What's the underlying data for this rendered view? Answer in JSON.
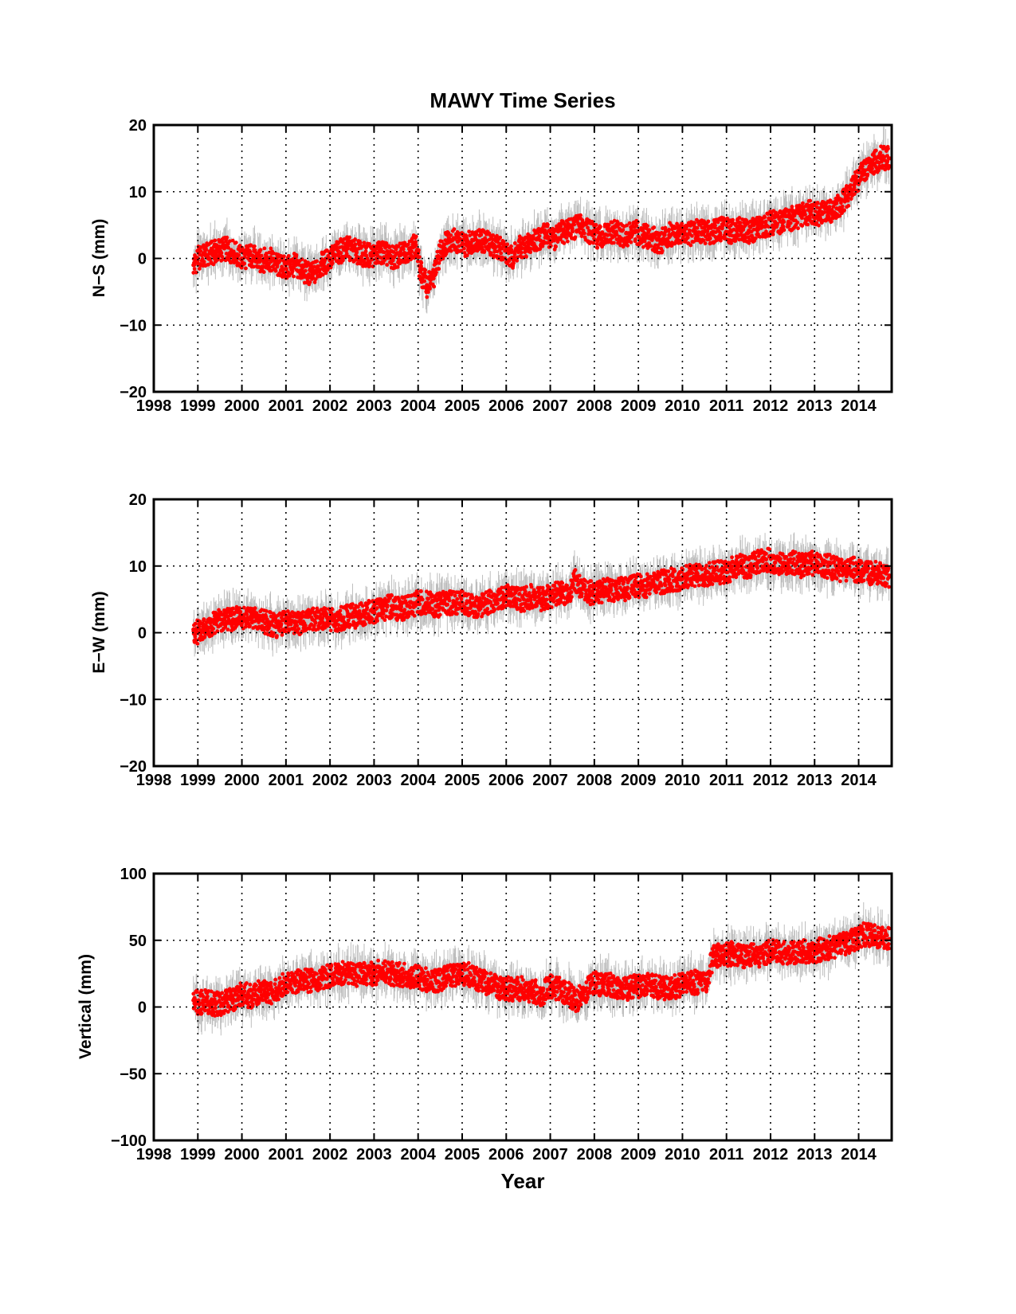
{
  "figure": {
    "title": "MAWY Time Series",
    "xlabel": "Year"
  },
  "colors": {
    "point": "#ff0000",
    "error_bar": "#bdbdbd",
    "axes": "#000000",
    "grid": "#000000"
  },
  "chart_data": [
    {
      "type": "scatter",
      "title": "MAWY Time Series",
      "ylabel": "N−S (mm)",
      "xlabel": "",
      "xlim": [
        1998,
        2014.75
      ],
      "ylim": [
        -20,
        20
      ],
      "xticks": [
        "1998",
        "1999",
        "2000",
        "2001",
        "2002",
        "2003",
        "2004",
        "2005",
        "2006",
        "2007",
        "2008",
        "2009",
        "2010",
        "2011",
        "2012",
        "2013",
        "2014"
      ],
      "yticks": [
        "−20",
        "−10",
        "0",
        "10",
        "20"
      ],
      "yticks_values": [
        -20,
        -10,
        0,
        10,
        20
      ],
      "grid": true,
      "series": [
        {
          "marker": "red dots with grey error bars",
          "x": [
            1998.9,
            1999.0,
            1999.2,
            1999.4,
            1999.6,
            1999.8,
            2000.0,
            2000.2,
            2000.4,
            2000.6,
            2000.8,
            2001.0,
            2001.2,
            2001.4,
            2001.6,
            2001.8,
            2002.0,
            2002.2,
            2002.4,
            2002.6,
            2002.8,
            2003.0,
            2003.2,
            2003.4,
            2003.6,
            2003.8,
            2003.95,
            2004.05,
            2004.2,
            2004.35,
            2004.5,
            2004.7,
            2004.9,
            2005.1,
            2005.3,
            2005.5,
            2005.7,
            2005.9,
            2006.1,
            2006.3,
            2006.5,
            2006.7,
            2006.9,
            2007.1,
            2007.3,
            2007.5,
            2007.7,
            2007.9,
            2008.1,
            2008.3,
            2008.5,
            2008.7,
            2008.9,
            2009.1,
            2009.3,
            2009.5,
            2009.7,
            2009.9,
            2010.1,
            2010.3,
            2010.5,
            2010.7,
            2010.9,
            2011.1,
            2011.3,
            2011.5,
            2011.7,
            2011.9,
            2012.1,
            2012.3,
            2012.5,
            2012.7,
            2012.9,
            2013.1,
            2013.3,
            2013.5,
            2013.7,
            2013.9,
            2014.1,
            2014.3,
            2014.5,
            2014.7
          ],
          "y": [
            -1,
            0,
            0.5,
            1,
            1.5,
            1,
            0,
            0.5,
            -0.5,
            0,
            -1,
            -1.5,
            -1,
            -2,
            -2.5,
            -1,
            0,
            1,
            1.5,
            1,
            0.5,
            0.5,
            1,
            0,
            0.5,
            1.5,
            2,
            -2,
            -4,
            -3,
            1,
            3,
            2.5,
            2,
            3,
            2.5,
            2,
            1.5,
            0,
            1.5,
            2,
            3,
            3.5,
            3,
            4,
            4.5,
            5,
            4,
            3,
            3.5,
            4,
            3,
            4,
            3.5,
            3,
            2.5,
            3.5,
            4,
            3.5,
            4,
            4,
            4,
            4.5,
            4,
            4.5,
            4,
            4.5,
            5,
            5.5,
            5.5,
            6,
            6.5,
            7,
            6.5,
            7,
            7.5,
            9,
            11,
            13,
            14,
            15,
            15
          ]
        }
      ]
    },
    {
      "type": "scatter",
      "title": "",
      "ylabel": "E−W (mm)",
      "xlabel": "",
      "xlim": [
        1998,
        2014.75
      ],
      "ylim": [
        -20,
        20
      ],
      "xticks": [
        "1998",
        "1999",
        "2000",
        "2001",
        "2002",
        "2003",
        "2004",
        "2005",
        "2006",
        "2007",
        "2008",
        "2009",
        "2010",
        "2011",
        "2012",
        "2013",
        "2014"
      ],
      "yticks": [
        "−20",
        "−10",
        "0",
        "10",
        "20"
      ],
      "yticks_values": [
        -20,
        -10,
        0,
        10,
        20
      ],
      "grid": true,
      "series": [
        {
          "marker": "red dots with grey error bars",
          "x": [
            1998.9,
            1999.0,
            1999.2,
            1999.4,
            1999.6,
            1999.8,
            2000.0,
            2000.2,
            2000.4,
            2000.6,
            2000.8,
            2001.0,
            2001.2,
            2001.4,
            2001.6,
            2001.8,
            2002.0,
            2002.2,
            2002.4,
            2002.6,
            2002.8,
            2003.0,
            2003.2,
            2003.4,
            2003.6,
            2003.8,
            2004.0,
            2004.2,
            2004.4,
            2004.6,
            2004.8,
            2005.0,
            2005.2,
            2005.4,
            2005.6,
            2005.8,
            2006.0,
            2006.2,
            2006.4,
            2006.6,
            2006.8,
            2007.0,
            2007.2,
            2007.4,
            2007.55,
            2007.7,
            2007.9,
            2008.1,
            2008.3,
            2008.5,
            2008.7,
            2008.9,
            2009.1,
            2009.3,
            2009.5,
            2009.7,
            2009.9,
            2010.1,
            2010.3,
            2010.5,
            2010.7,
            2010.9,
            2011.1,
            2011.3,
            2011.5,
            2011.7,
            2011.9,
            2012.1,
            2012.3,
            2012.5,
            2012.7,
            2012.9,
            2013.1,
            2013.3,
            2013.5,
            2013.7,
            2013.9,
            2014.1,
            2014.3,
            2014.5,
            2014.7
          ],
          "y": [
            0.5,
            0,
            0.5,
            1.5,
            2,
            2,
            2.5,
            2,
            2,
            1.5,
            1,
            1.5,
            1.5,
            1.5,
            2,
            2,
            2,
            2,
            2.5,
            2.5,
            3,
            3,
            3.5,
            4,
            3.5,
            4,
            4.5,
            4.5,
            4,
            4.5,
            4.5,
            4.5,
            4,
            4,
            4.5,
            5,
            5.5,
            5,
            5,
            5.5,
            5,
            5.5,
            6,
            5.5,
            8,
            6.5,
            6,
            6,
            6.5,
            6.5,
            6.5,
            7,
            7,
            7,
            7.5,
            8,
            8,
            8.5,
            8.5,
            8.5,
            9,
            9,
            9.5,
            10,
            10,
            10.5,
            11,
            10.5,
            10.5,
            10.5,
            10,
            10.5,
            10,
            10,
            9.5,
            9.5,
            9.5,
            9,
            9,
            9,
            8.5
          ]
        }
      ]
    },
    {
      "type": "scatter",
      "title": "",
      "ylabel": "Vertical (mm)",
      "xlabel": "Year",
      "xlim": [
        1998,
        2014.75
      ],
      "ylim": [
        -100,
        100
      ],
      "xticks": [
        "1998",
        "1999",
        "2000",
        "2001",
        "2002",
        "2003",
        "2004",
        "2005",
        "2006",
        "2007",
        "2008",
        "2009",
        "2010",
        "2011",
        "2012",
        "2013",
        "2014"
      ],
      "yticks": [
        "−100",
        "−50",
        "0",
        "50",
        "100"
      ],
      "yticks_values": [
        -100,
        -50,
        0,
        50,
        100
      ],
      "grid": true,
      "series": [
        {
          "marker": "red dots with grey error bars",
          "x": [
            1998.9,
            1999.0,
            1999.2,
            1999.4,
            1999.6,
            1999.8,
            2000.0,
            2000.2,
            2000.4,
            2000.6,
            2000.8,
            2001.0,
            2001.2,
            2001.4,
            2001.6,
            2001.8,
            2002.0,
            2002.2,
            2002.4,
            2002.6,
            2002.8,
            2003.0,
            2003.2,
            2003.4,
            2003.6,
            2003.8,
            2004.0,
            2004.2,
            2004.4,
            2004.6,
            2004.8,
            2005.0,
            2005.2,
            2005.4,
            2005.6,
            2005.8,
            2006.0,
            2006.2,
            2006.4,
            2006.6,
            2006.8,
            2007.0,
            2007.2,
            2007.4,
            2007.6,
            2007.8,
            2008.0,
            2008.2,
            2008.4,
            2008.6,
            2008.8,
            2009.0,
            2009.2,
            2009.4,
            2009.6,
            2009.8,
            2010.0,
            2010.2,
            2010.4,
            2010.55,
            2010.7,
            2010.9,
            2011.1,
            2011.3,
            2011.5,
            2011.7,
            2011.9,
            2012.1,
            2012.3,
            2012.5,
            2012.7,
            2012.9,
            2013.1,
            2013.3,
            2013.5,
            2013.7,
            2013.9,
            2014.1,
            2014.3,
            2014.5,
            2014.7
          ],
          "y": [
            5,
            3,
            4,
            2,
            3,
            6,
            10,
            8,
            12,
            10,
            14,
            17,
            18,
            20,
            20,
            22,
            24,
            25,
            25,
            24,
            25,
            25,
            27,
            25,
            24,
            23,
            22,
            20,
            20,
            22,
            23,
            25,
            24,
            20,
            17,
            15,
            14,
            13,
            14,
            12,
            10,
            15,
            14,
            10,
            5,
            12,
            18,
            17,
            16,
            15,
            14,
            16,
            18,
            15,
            14,
            15,
            17,
            18,
            19,
            20,
            38,
            39,
            40,
            38,
            39,
            38,
            40,
            43,
            41,
            40,
            42,
            40,
            43,
            44,
            46,
            47,
            50,
            55,
            53,
            52,
            51
          ]
        }
      ]
    }
  ]
}
